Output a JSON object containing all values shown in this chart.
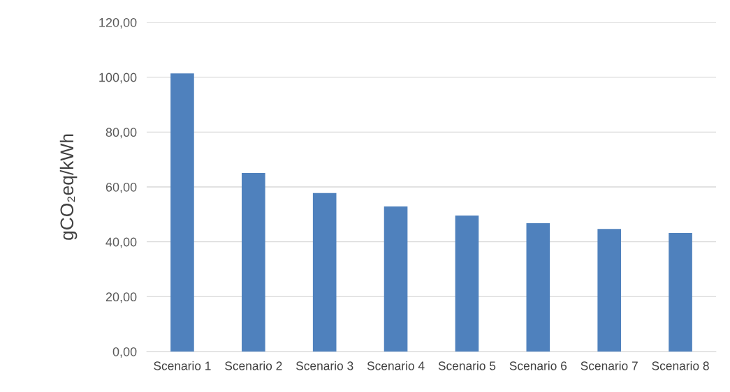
{
  "chart_data": {
    "type": "bar",
    "ylabel": "gCO₂eq/kWh",
    "categories": [
      "Scenario 1",
      "Scenario 2",
      "Scenario 3",
      "Scenario 4",
      "Scenario 5",
      "Scenario 6",
      "Scenario 7",
      "Scenario 8"
    ],
    "values": [
      101.4,
      65.1,
      57.8,
      52.9,
      49.6,
      46.8,
      44.7,
      43.2
    ],
    "color": "#4f81bd",
    "ylim": [
      0,
      120
    ],
    "yticks": [
      {
        "value": 0,
        "label": "0,00"
      },
      {
        "value": 20,
        "label": "20,00"
      },
      {
        "value": 40,
        "label": "40,00"
      },
      {
        "value": 60,
        "label": "60,00"
      },
      {
        "value": 80,
        "label": "80,00"
      },
      {
        "value": 100,
        "label": "100,00"
      },
      {
        "value": 120,
        "label": "120,00"
      }
    ],
    "grid": "y",
    "legend": false
  }
}
